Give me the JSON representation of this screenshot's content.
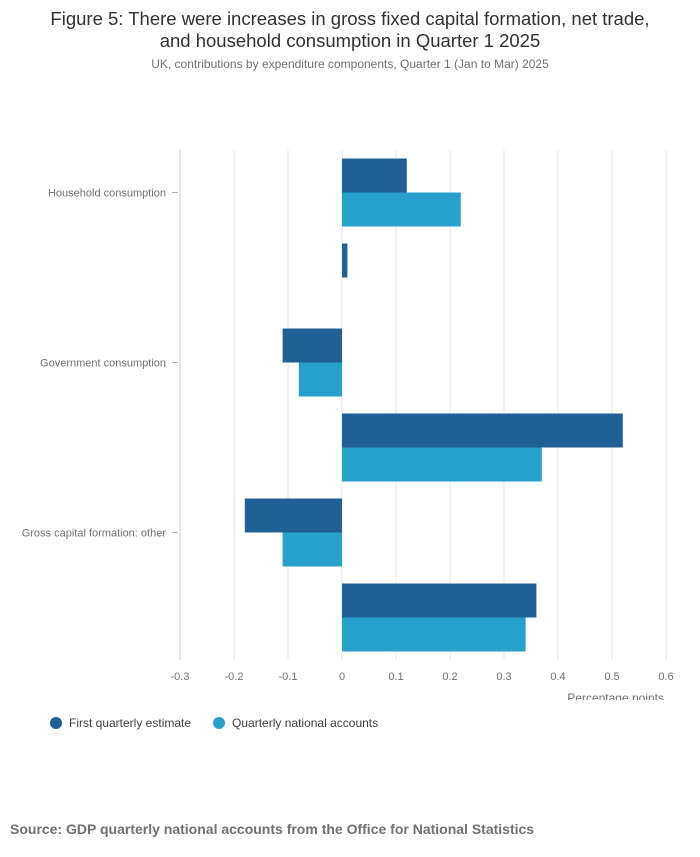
{
  "figure": {
    "title_line1": "Figure 5: There were increases in gross fixed capital formation, net trade,",
    "title_line2": "and household consumption in Quarter 1 2025",
    "subtitle": "UK, contributions by expenditure components, Quarter 1 (Jan to Mar) 2025",
    "source": "Source: GDP quarterly national accounts from the Office for National Statistics"
  },
  "colors": {
    "first_estimate": "#206095",
    "national_accounts": "#27a0cc",
    "grid": "#e6e6e6",
    "text": "#707071"
  },
  "chart_data": {
    "type": "bar",
    "orientation": "horizontal",
    "categories": [
      "Household consumption",
      "",
      "Government consumption",
      "",
      "Gross capital formation: other",
      ""
    ],
    "series": [
      {
        "name": "First quarterly estimate",
        "values": [
          0.12,
          0.01,
          -0.11,
          0.52,
          -0.18,
          0.36
        ]
      },
      {
        "name": "Quarterly national accounts",
        "values": [
          0.22,
          0.0,
          -0.08,
          0.37,
          -0.11,
          0.34
        ]
      }
    ],
    "xlabel": "Percentage points",
    "xlim": [
      -0.3,
      0.6
    ],
    "xticks": [
      "-0.3",
      "-0.2",
      "-0.1",
      "0",
      "0.1",
      "0.2",
      "0.3",
      "0.4",
      "0.5",
      "0.6"
    ],
    "xtick_values": [
      -0.3,
      -0.2,
      -0.1,
      0,
      0.1,
      0.2,
      0.3,
      0.4,
      0.5,
      0.6
    ],
    "grid": true,
    "legend_position": "bottom-left"
  }
}
